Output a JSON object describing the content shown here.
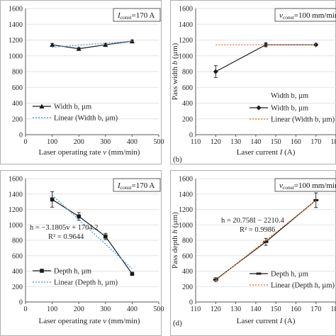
{
  "chart_data": [
    {
      "type": "line",
      "id": "a",
      "panel_label": "",
      "box_label": "I_const=170 A",
      "box_label_parts": {
        "var": "I",
        "sub": "const",
        "rest": "=170 A"
      },
      "xlabel_parts": {
        "pre": "Laser operating rate ",
        "var": "v",
        "post": " (mm/min)"
      },
      "ylabel_parts": {
        "pre": "",
        "var": "",
        "post": ""
      },
      "xlim": [
        0,
        500
      ],
      "ylim": [
        0,
        1600
      ],
      "xticks": [
        0,
        100,
        200,
        300,
        400,
        500
      ],
      "yticks": [
        0,
        200,
        400,
        600,
        800,
        1000,
        1200,
        1400,
        1600
      ],
      "x": [
        100,
        200,
        300,
        400
      ],
      "series": [
        {
          "name": "Width b, µm",
          "values": [
            1140,
            1090,
            1140,
            1185
          ],
          "errors": [
            15,
            15,
            15,
            15
          ],
          "style": "solid",
          "marker": "triangle",
          "color": "#1a1a1a"
        },
        {
          "name": "Linear (Width b, µm)",
          "values": [
            1110,
            1135,
            1160,
            1185
          ],
          "style": "dotted",
          "marker": "none",
          "color": "#5b9bd5"
        }
      ],
      "equation": "",
      "r2": "",
      "legend_position": "bottom-left"
    },
    {
      "type": "line",
      "id": "b",
      "panel_label": "(b)",
      "box_label": "v_const=100 mm/min",
      "box_label_parts": {
        "var": "v",
        "sub": "const",
        "rest": "=100 mm/min"
      },
      "xlabel_parts": {
        "pre": "Laser current ",
        "var": "I",
        "post": " (A)"
      },
      "ylabel_parts": {
        "pre": "Pass width ",
        "var": "b",
        "post": " (µm)"
      },
      "xlim": [
        110,
        180
      ],
      "ylim": [
        0,
        1600
      ],
      "xticks": [
        110,
        120,
        130,
        140,
        150,
        160,
        170,
        180
      ],
      "yticks": [
        0,
        200,
        400,
        600,
        800,
        1000,
        1200,
        1400,
        1600
      ],
      "x": [
        120,
        145,
        170
      ],
      "series": [
        {
          "name": "Width b, µm",
          "values": [
            800,
            1140,
            1140
          ],
          "errors": [
            75,
            25,
            10
          ],
          "style": "solid",
          "marker": "diamond",
          "color": "#1a1a1a"
        },
        {
          "name": "Linear (Width b, µm)",
          "values": [
            1140,
            1140,
            1140
          ],
          "style": "dotted",
          "marker": "none",
          "color": "#ed7d31"
        }
      ],
      "legend_title": "Width b, µm",
      "equation": "",
      "r2": "",
      "legend_position": "bottom-right"
    },
    {
      "type": "line",
      "id": "c",
      "panel_label": "",
      "box_label": "I_const=170 A",
      "box_label_parts": {
        "var": "I",
        "sub": "const",
        "rest": "=170 A"
      },
      "xlabel_parts": {
        "pre": "Laser operating rate ",
        "var": "v",
        "post": " (mm/min)"
      },
      "ylabel_parts": {
        "pre": "",
        "var": "",
        "post": ""
      },
      "xlim": [
        0,
        500
      ],
      "ylim": [
        0,
        1600
      ],
      "xticks": [
        0,
        100,
        200,
        300,
        400,
        500
      ],
      "yticks": [
        0,
        200,
        400,
        600,
        800,
        1000,
        1200,
        1400,
        1600
      ],
      "x": [
        100,
        200,
        300,
        400
      ],
      "series": [
        {
          "name": "Depth h, µm",
          "values": [
            1330,
            1110,
            850,
            365
          ],
          "errors": [
            100,
            50,
            40,
            20
          ],
          "style": "solid",
          "marker": "square",
          "color": "#1a1a1a"
        },
        {
          "name": "Linear (Depth h, µm)",
          "values": [
            1386,
            1068,
            750,
            432
          ],
          "style": "dotted",
          "marker": "none",
          "color": "#5b9bd5"
        }
      ],
      "equation": "h = −3.1805v + 1704.2",
      "r2": "R² = 0.9644",
      "legend_position": "bottom-left"
    },
    {
      "type": "line",
      "id": "d",
      "panel_label": "(d)",
      "box_label": "v_const=100 mm/min",
      "box_label_parts": {
        "var": "v",
        "sub": "const",
        "rest": "=100 mm/min"
      },
      "xlabel_parts": {
        "pre": "Laser current ",
        "var": "I",
        "post": " (A)"
      },
      "ylabel_parts": {
        "pre": "Pass depth ",
        "var": "h",
        "post": " (µm)"
      },
      "xlim": [
        110,
        180
      ],
      "ylim": [
        0,
        1600
      ],
      "xticks": [
        110,
        120,
        130,
        140,
        150,
        160,
        170,
        180
      ],
      "yticks": [
        0,
        200,
        400,
        600,
        800,
        1000,
        1200,
        1400,
        1600
      ],
      "x": [
        120,
        145,
        170
      ],
      "series": [
        {
          "name": "Depth h, µm",
          "values": [
            290,
            780,
            1320
          ],
          "errors": [
            25,
            45,
            95
          ],
          "style": "solid",
          "marker": "dash",
          "color": "#1a1a1a"
        },
        {
          "name": "Linear (Depth h, µm)",
          "values": [
            280.7,
            799.6,
            1318.6
          ],
          "style": "dotted",
          "marker": "none",
          "color": "#ed7d31"
        }
      ],
      "equation": "h = 20.758I − 2210.4",
      "r2": "R² = 0.9986",
      "legend_position": "bottom-right"
    }
  ]
}
